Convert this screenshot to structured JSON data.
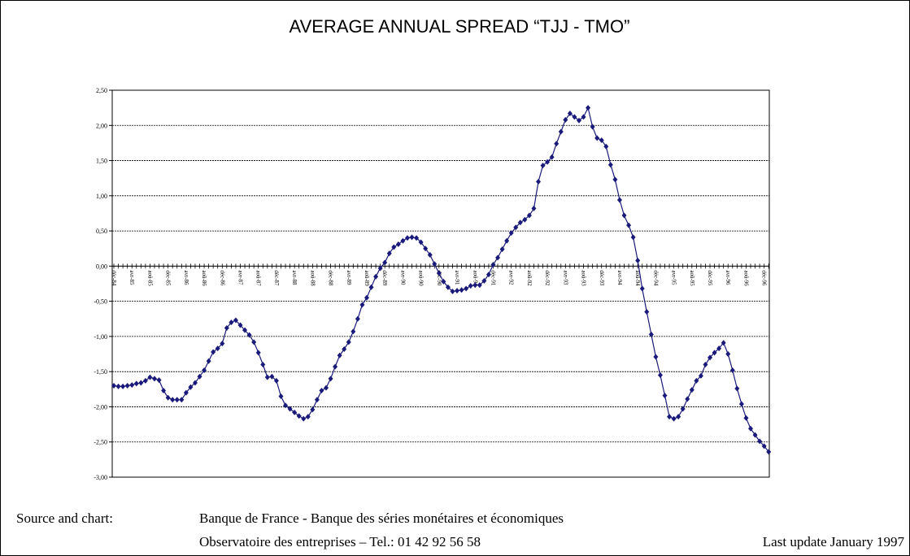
{
  "chart_data": {
    "type": "line",
    "title": "AVERAGE ANNUAL SPREAD “TJJ - TMO”",
    "color": "#1a1a7a",
    "grid": true,
    "ylim": [
      -3,
      2.5
    ],
    "yticks": [
      {
        "value": 2.5,
        "label": "2,50"
      },
      {
        "value": 2,
        "label": "2,00"
      },
      {
        "value": 1.5,
        "label": "1,50"
      },
      {
        "value": 1,
        "label": "1,00"
      },
      {
        "value": 0.5,
        "label": "0,50"
      },
      {
        "value": 0,
        "label": "0,00"
      },
      {
        "value": -0.5,
        "label": "-0,50"
      },
      {
        "value": -1,
        "label": "-1,00"
      },
      {
        "value": -1.5,
        "label": "-1,50"
      },
      {
        "value": -2,
        "label": "-2,00"
      },
      {
        "value": -2.5,
        "label": "-2,50"
      },
      {
        "value": -3,
        "label": "-3,00"
      }
    ],
    "categories": [
      "déc-84",
      null,
      null,
      null,
      "avr-85",
      null,
      null,
      null,
      "aoû-85",
      null,
      null,
      null,
      "déc-85",
      null,
      null,
      null,
      "avr-86",
      null,
      null,
      null,
      "aoû-86",
      null,
      null,
      null,
      "déc-86",
      null,
      null,
      null,
      "avr-87",
      null,
      null,
      null,
      "aoû-87",
      null,
      null,
      null,
      "déc-87",
      null,
      null,
      null,
      "avr-88",
      null,
      null,
      null,
      "aoû-88",
      null,
      null,
      null,
      "déc-88",
      null,
      null,
      null,
      "avr-89",
      null,
      null,
      null,
      "aoû-89",
      null,
      null,
      null,
      "déc-89",
      null,
      null,
      null,
      "avr-90",
      null,
      null,
      null,
      "aoû-90",
      null,
      null,
      null,
      "déc-90",
      null,
      null,
      null,
      "avr-91",
      null,
      null,
      null,
      "aoû-91",
      null,
      null,
      null,
      "déc-91",
      null,
      null,
      null,
      "avr-92",
      null,
      null,
      null,
      "aoû-92",
      null,
      null,
      null,
      "déc-92",
      null,
      null,
      null,
      "avr-93",
      null,
      null,
      null,
      "aoû-93",
      null,
      null,
      null,
      "déc-93",
      null,
      null,
      null,
      "avr-94",
      null,
      null,
      null,
      "aoû-94",
      null,
      null,
      null,
      "déc-94",
      null,
      null,
      null,
      "avr-95",
      null,
      null,
      null,
      "aoû-95",
      null,
      null,
      null,
      "déc-95",
      null,
      null,
      null,
      "avr-96",
      null,
      null,
      null,
      "aoû-96",
      null,
      null,
      null,
      "déc-96",
      null
    ],
    "values": [
      -1.7,
      -1.71,
      -1.71,
      -1.7,
      -1.69,
      -1.67,
      -1.66,
      -1.63,
      -1.58,
      -1.6,
      -1.62,
      -1.77,
      -1.87,
      -1.9,
      -1.9,
      -1.9,
      -1.8,
      -1.72,
      -1.66,
      -1.57,
      -1.48,
      -1.35,
      -1.22,
      -1.17,
      -1.1,
      -0.88,
      -0.8,
      -0.77,
      -0.84,
      -0.91,
      -0.98,
      -1.08,
      -1.23,
      -1.4,
      -1.58,
      -1.57,
      -1.63,
      -1.85,
      -1.98,
      -2.03,
      -2.08,
      -2.13,
      -2.17,
      -2.14,
      -2.04,
      -1.9,
      -1.77,
      -1.73,
      -1.6,
      -1.43,
      -1.27,
      -1.18,
      -1.08,
      -0.93,
      -0.75,
      -0.55,
      -0.45,
      -0.3,
      -0.15,
      -0.03,
      0.05,
      0.18,
      0.27,
      0.31,
      0.36,
      0.4,
      0.41,
      0.4,
      0.34,
      0.25,
      0.16,
      0.03,
      -0.1,
      -0.22,
      -0.3,
      -0.36,
      -0.35,
      -0.34,
      -0.32,
      -0.28,
      -0.27,
      -0.27,
      -0.21,
      -0.12,
      0.02,
      0.12,
      0.24,
      0.36,
      0.47,
      0.55,
      0.62,
      0.66,
      0.72,
      0.82,
      1.2,
      1.43,
      1.48,
      1.55,
      1.74,
      1.91,
      2.08,
      2.17,
      2.12,
      2.07,
      2.12,
      2.25,
      1.98,
      1.82,
      1.79,
      1.7,
      1.44,
      1.23,
      0.94,
      0.72,
      0.58,
      0.41,
      0.08,
      -0.32,
      -0.65,
      -0.97,
      -1.29,
      -1.55,
      -1.84,
      -2.14,
      -2.17,
      -2.14,
      -2.03,
      -1.89,
      -1.76,
      -1.63,
      -1.56,
      -1.4,
      -1.3,
      -1.23,
      -1.17,
      -1.09,
      -1.25,
      -1.48,
      -1.74,
      -1.96,
      -2.16,
      -2.31,
      -2.4,
      -2.49,
      -2.56,
      -2.64
    ]
  },
  "footer": {
    "source_label": "Source and chart:",
    "line1": "Banque de France - Banque des séries monétaires et économiques",
    "line2": "Observatoire des entreprises – Tel.: 01 42 92 56 58",
    "update": "Last update January 1997"
  }
}
